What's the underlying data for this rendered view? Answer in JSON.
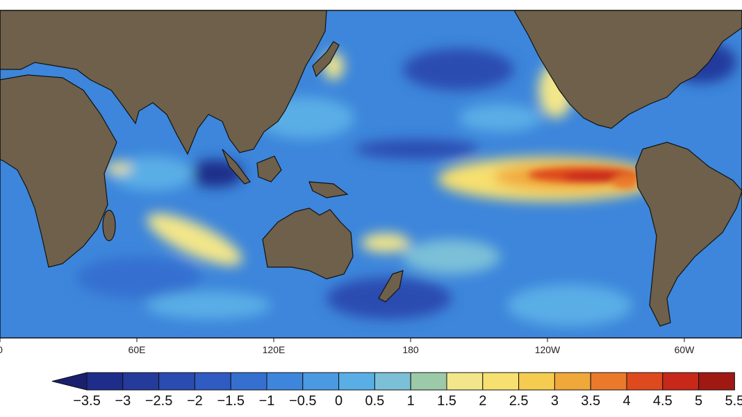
{
  "map": {
    "x_axis_labels": [
      "0",
      "60E",
      "120E",
      "180",
      "120W",
      "60W"
    ],
    "colorbar": {
      "labels": [
        "−3.5",
        "−3",
        "−2.5",
        "−2",
        "−1.5",
        "−1",
        "−0.5",
        "0",
        "0.5",
        "1",
        "1.5",
        "2",
        "2.5",
        "3",
        "3.5",
        "4",
        "4.5",
        "5",
        "5.5"
      ],
      "extend_color": "#1a1f6e",
      "colors": [
        "#1f2d8a",
        "#243b9c",
        "#2a4bb0",
        "#2f5cc2",
        "#3570d0",
        "#3d86db",
        "#4a9ae2",
        "#5aaee6",
        "#7cc0d8",
        "#9cc9a8",
        "#f3e68a",
        "#f7e070",
        "#f5cc50",
        "#f0a83a",
        "#ea7a2a",
        "#de4a1e",
        "#c8281a",
        "#a01812"
      ]
    }
  }
}
